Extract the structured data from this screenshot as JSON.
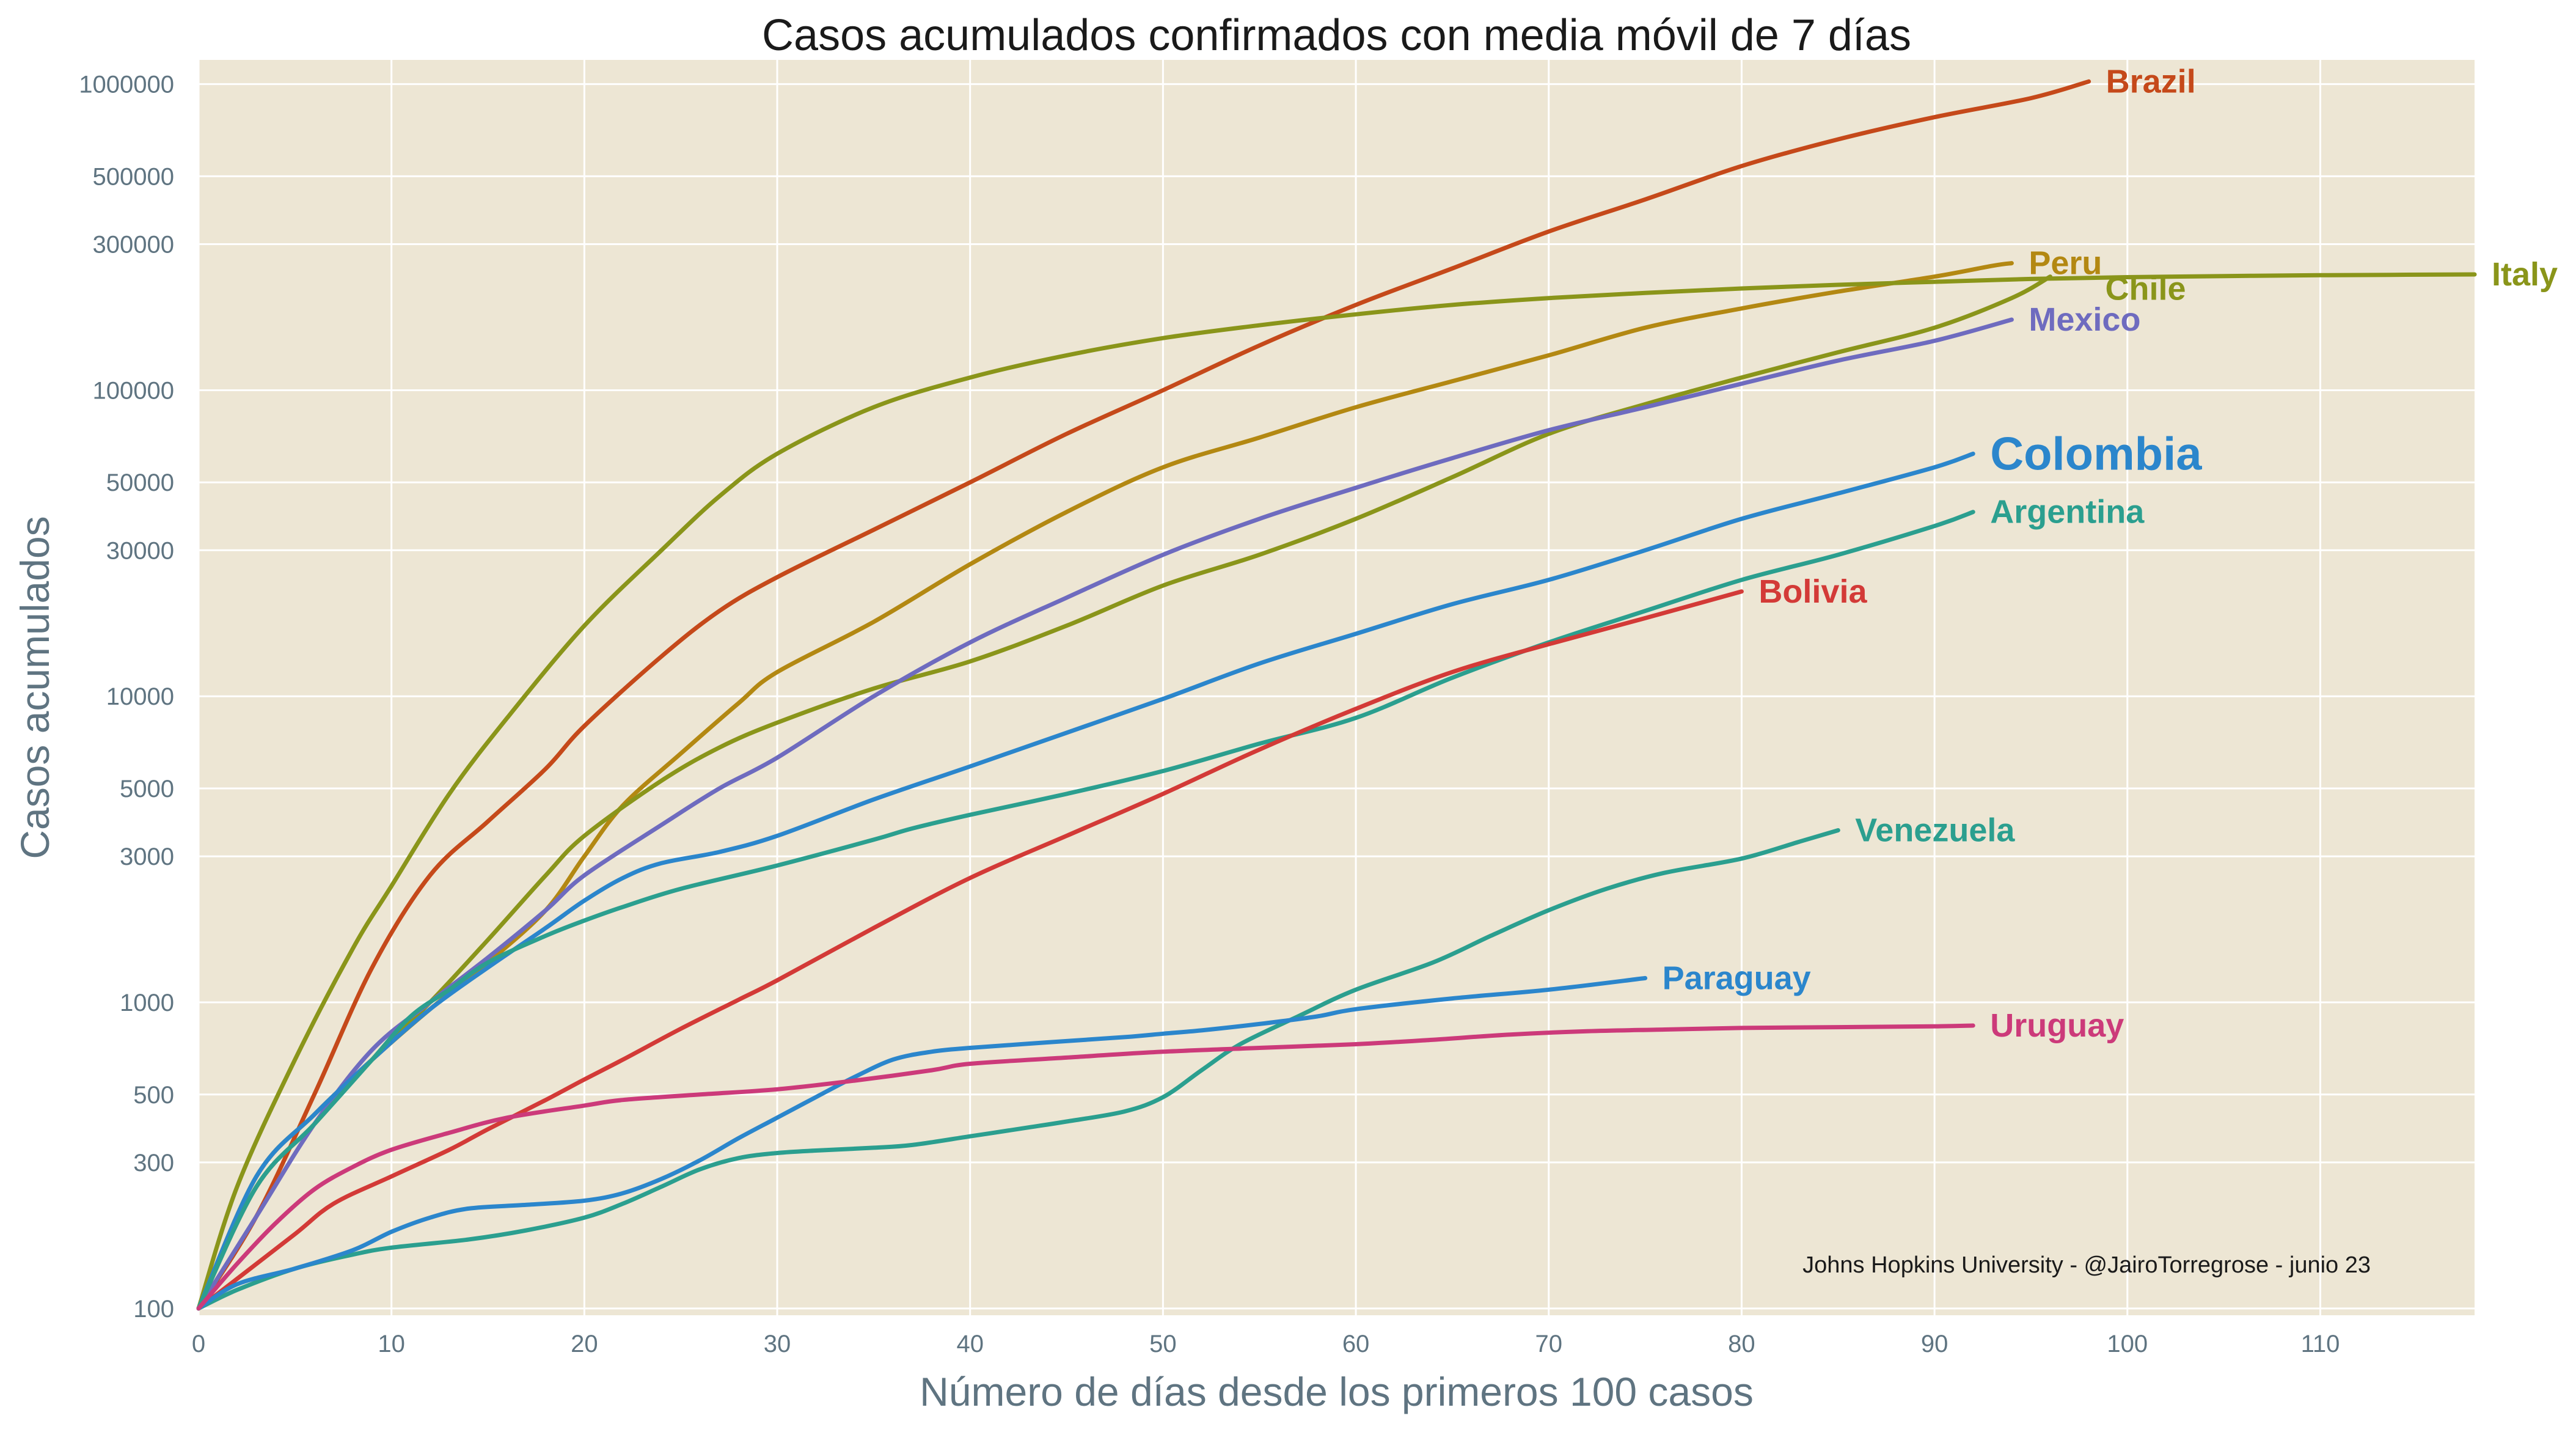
{
  "chart_data": {
    "type": "line",
    "title": "Casos acumulados confirmados con media móvil de 7 días",
    "xlabel": "Número de días desde los primeros 100 casos",
    "ylabel": "Casos acumulados",
    "xlim": [
      0,
      118
    ],
    "ylim": [
      95,
      1200000
    ],
    "yscale": "log",
    "grid": true,
    "background": "#ede6d4",
    "x_ticks": [
      0,
      10,
      20,
      30,
      40,
      50,
      60,
      70,
      80,
      90,
      100,
      110
    ],
    "y_ticks": [
      100,
      300,
      500,
      1000,
      3000,
      5000,
      10000,
      30000,
      50000,
      100000,
      300000,
      500000,
      1000000
    ],
    "legend": "direct labels at line ends",
    "annotation": "Johns Hopkins University - @JairoTorregrose - junio 23",
    "series": [
      {
        "name": "Brazil",
        "color": "#c5491a",
        "emphasis": false,
        "points": [
          [
            0,
            100
          ],
          [
            3,
            200
          ],
          [
            6,
            500
          ],
          [
            9,
            1300
          ],
          [
            12,
            2600
          ],
          [
            15,
            3900
          ],
          [
            18,
            5800
          ],
          [
            20,
            8000
          ],
          [
            24,
            13500
          ],
          [
            27,
            19000
          ],
          [
            30,
            24500
          ],
          [
            35,
            35000
          ],
          [
            40,
            50000
          ],
          [
            45,
            72000
          ],
          [
            50,
            100000
          ],
          [
            55,
            140000
          ],
          [
            60,
            190000
          ],
          [
            65,
            250000
          ],
          [
            70,
            330000
          ],
          [
            75,
            420000
          ],
          [
            80,
            540000
          ],
          [
            85,
            660000
          ],
          [
            90,
            780000
          ],
          [
            95,
            900000
          ],
          [
            98,
            1020000
          ]
        ]
      },
      {
        "name": "Peru",
        "color": "#b38812",
        "emphasis": false,
        "points": [
          [
            0,
            100
          ],
          [
            3,
            270
          ],
          [
            6,
            430
          ],
          [
            9,
            650
          ],
          [
            12,
            950
          ],
          [
            15,
            1350
          ],
          [
            18,
            2000
          ],
          [
            20,
            3000
          ],
          [
            22,
            4400
          ],
          [
            25,
            6500
          ],
          [
            28,
            9500
          ],
          [
            30,
            12000
          ],
          [
            35,
            17500
          ],
          [
            40,
            27000
          ],
          [
            45,
            40000
          ],
          [
            50,
            56000
          ],
          [
            55,
            70000
          ],
          [
            60,
            88000
          ],
          [
            65,
            107000
          ],
          [
            70,
            130000
          ],
          [
            75,
            160000
          ],
          [
            80,
            185000
          ],
          [
            85,
            210000
          ],
          [
            90,
            235000
          ],
          [
            93,
            255000
          ],
          [
            94,
            260000
          ]
        ]
      },
      {
        "name": "Chile",
        "color": "#8a951a",
        "emphasis": false,
        "points": [
          [
            0,
            100
          ],
          [
            3,
            250
          ],
          [
            6,
            400
          ],
          [
            9,
            650
          ],
          [
            12,
            1000
          ],
          [
            15,
            1600
          ],
          [
            18,
            2600
          ],
          [
            20,
            3500
          ],
          [
            24,
            5300
          ],
          [
            27,
            6800
          ],
          [
            30,
            8200
          ],
          [
            35,
            10600
          ],
          [
            40,
            13000
          ],
          [
            45,
            17000
          ],
          [
            50,
            23000
          ],
          [
            55,
            29000
          ],
          [
            60,
            38000
          ],
          [
            65,
            52000
          ],
          [
            70,
            72000
          ],
          [
            75,
            90000
          ],
          [
            80,
            110000
          ],
          [
            85,
            133000
          ],
          [
            90,
            160000
          ],
          [
            94,
            200000
          ],
          [
            96,
            235000
          ]
        ]
      },
      {
        "name": "Italy",
        "color": "#8a951a",
        "emphasis": false,
        "points": [
          [
            0,
            100
          ],
          [
            2,
            250
          ],
          [
            5,
            650
          ],
          [
            8,
            1500
          ],
          [
            10,
            2400
          ],
          [
            13,
            4800
          ],
          [
            16,
            8500
          ],
          [
            20,
            17000
          ],
          [
            24,
            30000
          ],
          [
            27,
            45000
          ],
          [
            30,
            62000
          ],
          [
            35,
            88000
          ],
          [
            40,
            110000
          ],
          [
            45,
            130000
          ],
          [
            50,
            148000
          ],
          [
            55,
            163000
          ],
          [
            60,
            177000
          ],
          [
            65,
            190000
          ],
          [
            70,
            200000
          ],
          [
            75,
            208000
          ],
          [
            80,
            215000
          ],
          [
            85,
            221000
          ],
          [
            90,
            226000
          ],
          [
            95,
            231000
          ],
          [
            100,
            234000
          ],
          [
            105,
            236000
          ],
          [
            110,
            237500
          ],
          [
            118,
            239000
          ]
        ]
      },
      {
        "name": "Mexico",
        "color": "#6e6bbf",
        "emphasis": false,
        "points": [
          [
            0,
            100
          ],
          [
            3,
            200
          ],
          [
            6,
            400
          ],
          [
            9,
            700
          ],
          [
            12,
            1000
          ],
          [
            15,
            1400
          ],
          [
            18,
            2000
          ],
          [
            20,
            2600
          ],
          [
            24,
            3800
          ],
          [
            27,
            5000
          ],
          [
            30,
            6300
          ],
          [
            35,
            10000
          ],
          [
            40,
            15000
          ],
          [
            45,
            21000
          ],
          [
            50,
            29000
          ],
          [
            55,
            38000
          ],
          [
            60,
            48000
          ],
          [
            65,
            60000
          ],
          [
            70,
            74000
          ],
          [
            75,
            88000
          ],
          [
            80,
            105000
          ],
          [
            85,
            125000
          ],
          [
            90,
            145000
          ],
          [
            94,
            170000
          ]
        ]
      },
      {
        "name": "Colombia",
        "color": "#2b86cc",
        "emphasis": true,
        "points": [
          [
            0,
            100
          ],
          [
            3,
            270
          ],
          [
            6,
            430
          ],
          [
            9,
            650
          ],
          [
            12,
            950
          ],
          [
            15,
            1300
          ],
          [
            18,
            1750
          ],
          [
            20,
            2150
          ],
          [
            22,
            2550
          ],
          [
            24,
            2850
          ],
          [
            27,
            3100
          ],
          [
            30,
            3500
          ],
          [
            35,
            4600
          ],
          [
            40,
            5900
          ],
          [
            45,
            7600
          ],
          [
            50,
            9800
          ],
          [
            55,
            12800
          ],
          [
            60,
            16000
          ],
          [
            65,
            20000
          ],
          [
            70,
            24000
          ],
          [
            75,
            30000
          ],
          [
            80,
            38000
          ],
          [
            85,
            46000
          ],
          [
            90,
            56000
          ],
          [
            92,
            62000
          ]
        ]
      },
      {
        "name": "Argentina",
        "color": "#2b9f8f",
        "emphasis": false,
        "points": [
          [
            0,
            100
          ],
          [
            3,
            250
          ],
          [
            6,
            400
          ],
          [
            9,
            650
          ],
          [
            11,
            900
          ],
          [
            13,
            1100
          ],
          [
            15,
            1350
          ],
          [
            18,
            1650
          ],
          [
            20,
            1850
          ],
          [
            22,
            2050
          ],
          [
            25,
            2350
          ],
          [
            30,
            2800
          ],
          [
            35,
            3400
          ],
          [
            37,
            3700
          ],
          [
            40,
            4100
          ],
          [
            45,
            4800
          ],
          [
            50,
            5700
          ],
          [
            55,
            7000
          ],
          [
            60,
            8500
          ],
          [
            65,
            11500
          ],
          [
            70,
            15000
          ],
          [
            75,
            19000
          ],
          [
            80,
            24000
          ],
          [
            85,
            29000
          ],
          [
            90,
            36000
          ],
          [
            92,
            40000
          ]
        ]
      },
      {
        "name": "Bolivia",
        "color": "#d33a37",
        "emphasis": false,
        "points": [
          [
            0,
            100
          ],
          [
            2,
            125
          ],
          [
            5,
            175
          ],
          [
            7,
            220
          ],
          [
            10,
            270
          ],
          [
            13,
            330
          ],
          [
            15,
            385
          ],
          [
            18,
            480
          ],
          [
            20,
            560
          ],
          [
            22,
            650
          ],
          [
            25,
            820
          ],
          [
            28,
            1020
          ],
          [
            30,
            1180
          ],
          [
            35,
            1750
          ],
          [
            40,
            2550
          ],
          [
            45,
            3500
          ],
          [
            50,
            4800
          ],
          [
            55,
            6700
          ],
          [
            60,
            9100
          ],
          [
            65,
            12000
          ],
          [
            70,
            14800
          ],
          [
            75,
            18000
          ],
          [
            80,
            22000
          ]
        ]
      },
      {
        "name": "Venezuela",
        "color": "#2b9f8f",
        "emphasis": false,
        "points": [
          [
            0,
            100
          ],
          [
            2,
            115
          ],
          [
            5,
            135
          ],
          [
            8,
            150
          ],
          [
            10,
            158
          ],
          [
            14,
            168
          ],
          [
            17,
            180
          ],
          [
            20,
            198
          ],
          [
            22,
            220
          ],
          [
            24,
            250
          ],
          [
            26,
            285
          ],
          [
            28,
            310
          ],
          [
            30,
            322
          ],
          [
            32,
            328
          ],
          [
            35,
            335
          ],
          [
            37,
            342
          ],
          [
            40,
            365
          ],
          [
            43,
            390
          ],
          [
            45,
            408
          ],
          [
            48,
            440
          ],
          [
            50,
            490
          ],
          [
            52,
            600
          ],
          [
            54,
            730
          ],
          [
            57,
            900
          ],
          [
            60,
            1100
          ],
          [
            64,
            1350
          ],
          [
            67,
            1650
          ],
          [
            70,
            2000
          ],
          [
            73,
            2350
          ],
          [
            76,
            2650
          ],
          [
            80,
            2950
          ],
          [
            83,
            3350
          ],
          [
            85,
            3650
          ]
        ]
      },
      {
        "name": "Paraguay",
        "color": "#2b86cc",
        "emphasis": false,
        "points": [
          [
            0,
            100
          ],
          [
            2,
            120
          ],
          [
            5,
            135
          ],
          [
            8,
            155
          ],
          [
            10,
            178
          ],
          [
            12,
            198
          ],
          [
            14,
            212
          ],
          [
            17,
            218
          ],
          [
            20,
            225
          ],
          [
            22,
            238
          ],
          [
            24,
            265
          ],
          [
            26,
            305
          ],
          [
            28,
            360
          ],
          [
            30,
            420
          ],
          [
            32,
            490
          ],
          [
            34,
            570
          ],
          [
            36,
            650
          ],
          [
            38,
            690
          ],
          [
            40,
            710
          ],
          [
            44,
            740
          ],
          [
            48,
            770
          ],
          [
            50,
            790
          ],
          [
            52,
            810
          ],
          [
            55,
            850
          ],
          [
            58,
            900
          ],
          [
            60,
            950
          ],
          [
            65,
            1030
          ],
          [
            70,
            1100
          ],
          [
            75,
            1200
          ]
        ]
      },
      {
        "name": "Uruguay",
        "color": "#cc3a7a",
        "emphasis": false,
        "points": [
          [
            0,
            100
          ],
          [
            2,
            140
          ],
          [
            4,
            190
          ],
          [
            6,
            245
          ],
          [
            8,
            290
          ],
          [
            10,
            330
          ],
          [
            13,
            375
          ],
          [
            16,
            420
          ],
          [
            20,
            460
          ],
          [
            22,
            480
          ],
          [
            26,
            500
          ],
          [
            30,
            520
          ],
          [
            34,
            555
          ],
          [
            38,
            600
          ],
          [
            40,
            630
          ],
          [
            45,
            660
          ],
          [
            50,
            690
          ],
          [
            55,
            710
          ],
          [
            60,
            730
          ],
          [
            64,
            755
          ],
          [
            68,
            785
          ],
          [
            72,
            805
          ],
          [
            76,
            815
          ],
          [
            80,
            825
          ],
          [
            85,
            830
          ],
          [
            90,
            835
          ],
          [
            92,
            840
          ]
        ]
      }
    ]
  }
}
